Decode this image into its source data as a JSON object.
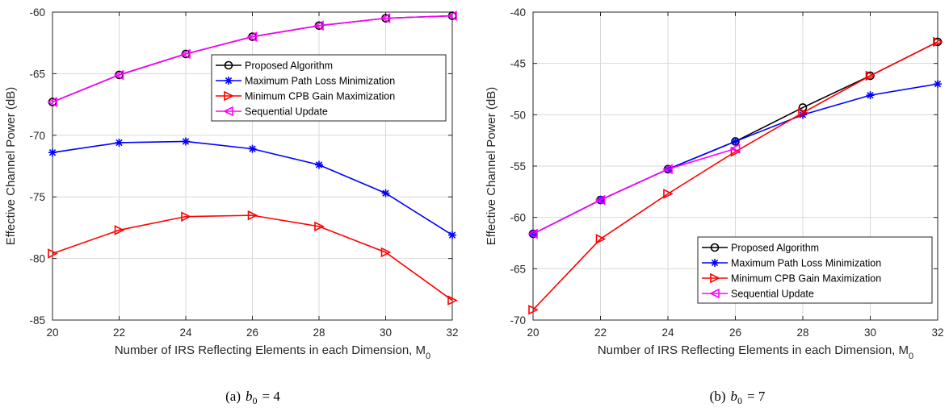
{
  "colors": {
    "proposed": "#000000",
    "maxpathloss": "#0000ff",
    "mincpb": "#ff0000",
    "sequential": "#ff00ff",
    "grid": "#d9d9d9",
    "axis": "#262626"
  },
  "legend_items": [
    {
      "label": "Proposed Algorithm",
      "marker": "circle"
    },
    {
      "label": "Maximum Path Loss Minimization",
      "marker": "asterisk"
    },
    {
      "label": "Minimum CPB Gain Maximization",
      "marker": "triangle-right"
    },
    {
      "label": "Sequential Update",
      "marker": "triangle-left"
    }
  ],
  "chart_data": [
    {
      "type": "line",
      "caption_prefix": "(a)",
      "caption_var": "b",
      "caption_sub": "0",
      "caption_value": "= 4",
      "xlabel": "Number of IRS Reflecting Elements in each Dimension, M",
      "xlabel_sub": "0",
      "ylabel": "Effective Channel Power (dB)",
      "xlim": [
        20,
        32
      ],
      "ylim": [
        -85,
        -60
      ],
      "xticks": [
        20,
        22,
        24,
        26,
        28,
        30,
        32
      ],
      "yticks": [
        -60,
        -65,
        -70,
        -75,
        -80,
        -85
      ],
      "grid": true,
      "legend_position": "upper-right",
      "x": [
        20,
        22,
        24,
        26,
        28,
        30,
        32
      ],
      "series": [
        {
          "name": "Proposed Algorithm",
          "values": [
            -67.3,
            -65.1,
            -63.4,
            -62.0,
            -61.1,
            -60.5,
            -60.3
          ]
        },
        {
          "name": "Maximum Path Loss Minimization",
          "values": [
            -71.4,
            -70.6,
            -70.5,
            -71.1,
            -72.4,
            -74.7,
            -78.1
          ]
        },
        {
          "name": "Minimum CPB Gain Maximization",
          "values": [
            -79.6,
            -77.7,
            -76.6,
            -76.5,
            -77.4,
            -79.5,
            -83.4
          ]
        },
        {
          "name": "Sequential Update",
          "values": [
            -67.3,
            -65.1,
            -63.4,
            -62.0,
            -61.1,
            -60.5,
            -60.3
          ]
        }
      ]
    },
    {
      "type": "line",
      "caption_prefix": "(b)",
      "caption_var": "b",
      "caption_sub": "0",
      "caption_value": "= 7",
      "xlabel": "Number of IRS Reflecting Elements in each Dimension, M",
      "xlabel_sub": "0",
      "ylabel": "Effective Channel Power (dB)",
      "xlim": [
        20,
        32
      ],
      "ylim": [
        -70,
        -40
      ],
      "xticks": [
        20,
        22,
        24,
        26,
        28,
        30,
        32
      ],
      "yticks": [
        -40,
        -45,
        -50,
        -55,
        -60,
        -65,
        -70
      ],
      "grid": true,
      "legend_position": "lower-right",
      "x": [
        20,
        22,
        24,
        26,
        28,
        30,
        32
      ],
      "series": [
        {
          "name": "Proposed Algorithm",
          "x": [
            20,
            22,
            24,
            26,
            28,
            30,
            32
          ],
          "values": [
            -61.6,
            -58.3,
            -55.3,
            -52.6,
            -49.3,
            -46.2,
            -42.9
          ]
        },
        {
          "name": "Maximum Path Loss Minimization",
          "x": [
            20,
            22,
            24,
            26,
            28,
            30,
            32
          ],
          "values": [
            -61.6,
            -58.3,
            -55.3,
            -52.6,
            -50.0,
            -48.1,
            -47.0
          ]
        },
        {
          "name": "Minimum CPB Gain Maximization",
          "x": [
            20,
            22,
            24,
            26,
            28,
            30,
            32
          ],
          "values": [
            -69.0,
            -62.1,
            -57.7,
            -53.6,
            -49.8,
            -46.2,
            -42.9
          ]
        },
        {
          "name": "Sequential Update",
          "x": [
            20,
            22,
            24,
            26
          ],
          "values": [
            -61.6,
            -58.3,
            -55.3,
            -53.3
          ]
        }
      ]
    }
  ]
}
